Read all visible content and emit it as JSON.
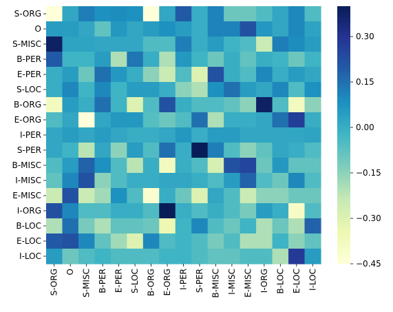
{
  "chart_data": {
    "type": "heatmap",
    "title": "",
    "xlabel": "",
    "ylabel": "",
    "rows": [
      "S-ORG",
      "O",
      "S-MISC",
      "B-PER",
      "E-PER",
      "S-LOC",
      "B-ORG",
      "E-ORG",
      "I-PER",
      "S-PER",
      "B-MISC",
      "I-MISC",
      "E-MISC",
      "I-ORG",
      "B-LOC",
      "E-LOC",
      "I-LOC"
    ],
    "columns": [
      "S-ORG",
      "O",
      "S-MISC",
      "B-PER",
      "E-PER",
      "S-LOC",
      "B-ORG",
      "E-ORG",
      "I-PER",
      "S-PER",
      "B-MISC",
      "I-MISC",
      "E-MISC",
      "I-ORG",
      "B-LOC",
      "E-LOC",
      "I-LOC"
    ],
    "values": [
      [
        -0.45,
        0.02,
        0.12,
        0.08,
        0.09,
        0.08,
        -0.45,
        0.02,
        0.2,
        0.0,
        0.11,
        -0.1,
        -0.1,
        -0.05,
        0.02,
        0.1,
        -0.05
      ],
      [
        0.05,
        0.05,
        0.02,
        -0.08,
        0.06,
        0.02,
        0.05,
        0.08,
        0.05,
        0.0,
        0.11,
        0.11,
        0.22,
        0.06,
        0.02,
        0.1,
        0.03
      ],
      [
        0.38,
        0.03,
        0.03,
        0.02,
        0.02,
        0.02,
        -0.05,
        -0.05,
        0.12,
        0.0,
        0.05,
        -0.02,
        -0.05,
        -0.25,
        0.12,
        0.09,
        0.05
      ],
      [
        0.2,
        -0.02,
        -0.02,
        0.05,
        -0.2,
        0.14,
        0.0,
        -0.2,
        0.06,
        -0.02,
        -0.1,
        0.0,
        -0.08,
        0.0,
        -0.02,
        -0.1,
        -0.02
      ],
      [
        0.0,
        0.05,
        -0.1,
        0.15,
        0.06,
        0.0,
        -0.15,
        -0.25,
        -0.05,
        -0.3,
        0.22,
        0.0,
        -0.05,
        0.1,
        0.0,
        0.05,
        0.02
      ],
      [
        0.0,
        0.1,
        -0.02,
        0.1,
        -0.02,
        0.05,
        0.05,
        0.0,
        -0.15,
        -0.2,
        0.08,
        0.15,
        0.05,
        0.02,
        0.1,
        -0.05,
        0.08
      ],
      [
        -0.38,
        0.05,
        0.0,
        0.15,
        -0.02,
        -0.3,
        -0.05,
        0.22,
        0.0,
        -0.05,
        -0.05,
        -0.08,
        -0.15,
        0.38,
        -0.05,
        -0.38,
        -0.15
      ],
      [
        -0.05,
        0.02,
        -0.45,
        0.02,
        0.06,
        0.06,
        -0.06,
        -0.1,
        -0.05,
        0.15,
        -0.2,
        0.0,
        0.0,
        0.02,
        0.15,
        0.27,
        0.0
      ],
      [
        0.02,
        0.05,
        0.02,
        0.05,
        0.02,
        0.0,
        0.0,
        0.02,
        0.06,
        0.0,
        0.05,
        0.05,
        0.02,
        0.02,
        0.02,
        0.02,
        0.03
      ],
      [
        0.02,
        -0.02,
        -0.22,
        0.02,
        -0.15,
        0.05,
        -0.05,
        0.15,
        0.0,
        0.4,
        0.12,
        -0.05,
        -0.15,
        -0.08,
        0.02,
        0.0,
        -0.05
      ],
      [
        -0.05,
        0.05,
        0.18,
        0.08,
        -0.05,
        -0.22,
        0.0,
        -0.38,
        0.0,
        -0.05,
        -0.28,
        0.22,
        0.25,
        -0.1,
        0.06,
        -0.08,
        -0.08
      ],
      [
        -0.08,
        0.1,
        0.22,
        -0.15,
        -0.05,
        0.0,
        0.0,
        0.02,
        0.02,
        0.0,
        -0.05,
        0.05,
        0.18,
        -0.05,
        -0.1,
        0.1,
        -0.05
      ],
      [
        -0.25,
        0.22,
        -0.25,
        -0.18,
        0.08,
        -0.05,
        -0.42,
        0.0,
        -0.1,
        -0.3,
        0.02,
        -0.05,
        -0.25,
        -0.15,
        -0.15,
        -0.1,
        -0.1
      ],
      [
        0.22,
        0.1,
        -0.05,
        -0.05,
        0.0,
        0.0,
        -0.05,
        0.42,
        0.0,
        -0.05,
        0.0,
        -0.05,
        -0.12,
        0.05,
        0.0,
        -0.4,
        -0.05
      ],
      [
        -0.2,
        0.15,
        -0.12,
        -0.2,
        -0.08,
        -0.08,
        -0.1,
        -0.35,
        -0.02,
        0.1,
        -0.05,
        -0.1,
        -0.02,
        -0.2,
        -0.1,
        -0.2,
        0.18
      ],
      [
        0.2,
        0.22,
        0.1,
        -0.08,
        -0.18,
        -0.3,
        0.1,
        -0.05,
        -0.02,
        -0.05,
        -0.12,
        -0.05,
        -0.2,
        -0.2,
        -0.02,
        -0.15,
        -0.08
      ],
      [
        0.05,
        -0.1,
        -0.05,
        -0.02,
        -0.05,
        -0.05,
        -0.05,
        -0.02,
        -0.02,
        -0.05,
        -0.08,
        -0.08,
        -0.05,
        -0.05,
        -0.2,
        0.28,
        0.05
      ]
    ],
    "colorbar": {
      "min": -0.45,
      "max": 0.4,
      "ticks": [
        0.3,
        0.15,
        0.0,
        -0.15,
        -0.3,
        -0.45
      ],
      "tick_labels": [
        "0.30",
        "0.15",
        "0.00",
        "−0.15",
        "−0.30",
        "−0.45"
      ],
      "colormap": "YlGnBu",
      "colormap_stops": [
        "#ffffd9",
        "#edf8b1",
        "#c7e9b4",
        "#7fcdbb",
        "#41b6c4",
        "#1d91c0",
        "#225ea8",
        "#253494",
        "#081d58"
      ]
    }
  }
}
